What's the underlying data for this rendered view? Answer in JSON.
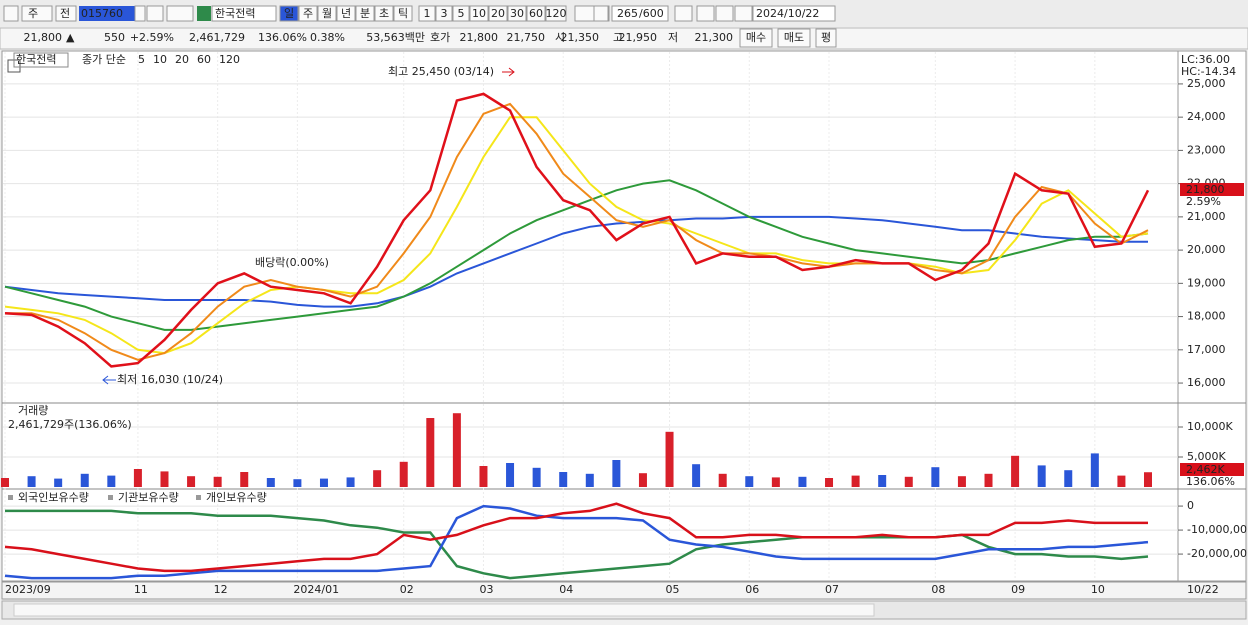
{
  "toolbar": {
    "market": "주",
    "prev": "전",
    "code": "015760",
    "name": "한국전력",
    "periods": [
      "일",
      "주",
      "월",
      "년",
      "분",
      "초",
      "틱"
    ],
    "selected_period": "일",
    "intervals": [
      "1",
      "3",
      "5",
      "10",
      "20",
      "30",
      "60",
      "120"
    ],
    "count": "265",
    "max_count": "/600",
    "date": "2024/10/22"
  },
  "quote": {
    "price": "21,800",
    "arrow": "▲",
    "change": "550",
    "change_pct": "+2.59%",
    "volume": "2,461,729",
    "volume_ratio": "136.06%",
    "turnover": "0.38%",
    "amount": "53,563백만",
    "ask_label": "호가",
    "ask": "21,800",
    "bid": "21,750",
    "open_label": "시",
    "open": "21,350",
    "high_label": "고",
    "high": "21,950",
    "low_label": "저",
    "low": "21,300",
    "buy": "매수",
    "sell": "매도",
    "avg": "평"
  },
  "chart_data": [
    {
      "type": "line",
      "title": "한국전력",
      "legend_title": "종가 단순",
      "ylim": [
        15430,
        25870
      ],
      "yticks": [
        {
          "value": 16000,
          "label": "16,000"
        },
        {
          "value": 17000,
          "label": "17,000"
        },
        {
          "value": 18000,
          "label": "18,000"
        },
        {
          "value": 19000,
          "label": "19,000"
        },
        {
          "value": 20000,
          "label": "20,000"
        },
        {
          "value": 21000,
          "label": "21,000"
        },
        {
          "value": 22000,
          "label": "22,000"
        },
        {
          "value": 23000,
          "label": "23,000"
        },
        {
          "value": 24000,
          "label": "24,000"
        },
        {
          "value": 25000,
          "label": "25,000"
        }
      ],
      "grid": true,
      "series": [
        {
          "name": "5",
          "color": "#e0101a",
          "values": [
            18100,
            18050,
            17700,
            17200,
            16500,
            16600,
            17300,
            18200,
            19000,
            19300,
            18900,
            18800,
            18700,
            18400,
            19500,
            20900,
            21800,
            24500,
            24700,
            24200,
            22500,
            21500,
            21200,
            20300,
            20800,
            21000,
            19600,
            19900,
            19800,
            19800,
            19400,
            19500,
            19700,
            19600,
            19600,
            19100,
            19400,
            20200,
            22300,
            21800,
            21700,
            20100,
            20200,
            21800
          ]
        },
        {
          "name": "10",
          "color": "#f08a1a",
          "values": [
            18100,
            18100,
            17900,
            17500,
            17000,
            16700,
            16900,
            17500,
            18300,
            18900,
            19100,
            18900,
            18800,
            18600,
            18900,
            19900,
            21000,
            22800,
            24100,
            24400,
            23500,
            22300,
            21600,
            20900,
            20700,
            20900,
            20300,
            19900,
            19900,
            19800,
            19600,
            19500,
            19600,
            19600,
            19600,
            19400,
            19300,
            19700,
            21000,
            21900,
            21700,
            20800,
            20200,
            20600
          ]
        },
        {
          "name": "20",
          "color": "#f5e61a",
          "values": [
            18300,
            18200,
            18100,
            17900,
            17500,
            17000,
            16900,
            17200,
            17800,
            18400,
            18800,
            18900,
            18800,
            18700,
            18700,
            19100,
            19900,
            21300,
            22800,
            24000,
            24000,
            23000,
            22000,
            21300,
            20900,
            20800,
            20500,
            20200,
            19900,
            19900,
            19700,
            19600,
            19600,
            19600,
            19600,
            19500,
            19300,
            19400,
            20300,
            21400,
            21800,
            21100,
            20400,
            20500
          ]
        },
        {
          "name": "60",
          "color": "#2e9a3a",
          "values": [
            18900,
            18700,
            18500,
            18300,
            18000,
            17800,
            17600,
            17600,
            17700,
            17800,
            17900,
            18000,
            18100,
            18200,
            18300,
            18600,
            19000,
            19500,
            20000,
            20500,
            20900,
            21200,
            21500,
            21800,
            22000,
            22100,
            21800,
            21400,
            21000,
            20700,
            20400,
            20200,
            20000,
            19900,
            19800,
            19700,
            19600,
            19700,
            19900,
            20100,
            20300,
            20400,
            20400,
            20500
          ]
        },
        {
          "name": "120",
          "color": "#2a56d8",
          "values": [
            18900,
            18800,
            18700,
            18650,
            18600,
            18550,
            18500,
            18500,
            18500,
            18500,
            18450,
            18350,
            18300,
            18300,
            18400,
            18600,
            18900,
            19300,
            19600,
            19900,
            20200,
            20500,
            20700,
            20800,
            20850,
            20900,
            20950,
            20950,
            21000,
            21000,
            21000,
            21000,
            20950,
            20900,
            20800,
            20700,
            20600,
            20600,
            20500,
            20400,
            20350,
            20300,
            20250,
            20250
          ]
        }
      ],
      "annotations": {
        "ex_dividend": "배당락(0.00%)",
        "high": "최고 25,450 (03/14)",
        "low": "최저 16,030 (10/24)",
        "lc": "LC:36.00",
        "hc": "HC:-14.34",
        "last_price": "21,800",
        "last_change": "2.59%"
      }
    },
    {
      "type": "bar",
      "title": "거래량",
      "subtitle": "2,461,729주(136.06%)",
      "ylim": [
        0,
        13670
      ],
      "yticks": [
        {
          "value": 5000,
          "label": "5,000K"
        },
        {
          "value": 10000,
          "label": "10,000K"
        }
      ],
      "up_color": "#d8202a",
      "down_color": "#2a56d8",
      "values": [
        1500,
        1800,
        1400,
        2200,
        1900,
        3000,
        2600,
        1800,
        1700,
        2500,
        1500,
        1300,
        1400,
        1600,
        2800,
        4200,
        11500,
        12300,
        3500,
        4000,
        3200,
        2500,
        2200,
        4500,
        2300,
        9200,
        3800,
        2200,
        1800,
        1600,
        1700,
        1500,
        1900,
        2000,
        1700,
        3300,
        1800,
        2200,
        5200,
        3600,
        2800,
        5600,
        1900,
        2462
      ],
      "last_label": "2,462K",
      "last_ratio": "136.06%"
    },
    {
      "type": "line",
      "ylim": [
        -30800000,
        6700000
      ],
      "yticks": [
        0,
        {
          "value": -10000000,
          "label": "-10,000,00"
        },
        {
          "value": -20000000,
          "label": "-20,000,00"
        }
      ],
      "categories": [
        "2023/09",
        null,
        null,
        null,
        null,
        "11",
        null,
        null,
        "12",
        null,
        null,
        "2024/01",
        null,
        null,
        null,
        "02",
        null,
        null,
        "03",
        null,
        null,
        "04",
        null,
        null,
        null,
        "05",
        null,
        null,
        "06",
        null,
        null,
        "07",
        null,
        null,
        null,
        "08",
        null,
        null,
        "09",
        null,
        null,
        "10",
        null,
        null
      ],
      "x_end_label": "10/22",
      "series": [
        {
          "name": "외국인보유수량",
          "color": "#d8101a",
          "values": [
            -17000000,
            -18000000,
            -20000000,
            -22000000,
            -24000000,
            -26000000,
            -27000000,
            -27000000,
            -26000000,
            -25000000,
            -24000000,
            -23000000,
            -22000000,
            -22000000,
            -20000000,
            -12000000,
            -14000000,
            -12000000,
            -8000000,
            -5000000,
            -5000000,
            -3000000,
            -2000000,
            1000000,
            -3000000,
            -5000000,
            -13000000,
            -13000000,
            -12000000,
            -12000000,
            -13000000,
            -13000000,
            -13000000,
            -12000000,
            -13000000,
            -13000000,
            -12000000,
            -12000000,
            -7000000,
            -7000000,
            -6000000,
            -7000000,
            -7000000,
            -7000000
          ]
        },
        {
          "name": "기관보유수량",
          "color": "#2a56d8",
          "values": [
            -29000000,
            -30000000,
            -30000000,
            -30000000,
            -30000000,
            -29000000,
            -29000000,
            -28000000,
            -27000000,
            -27000000,
            -27000000,
            -27000000,
            -27000000,
            -27000000,
            -27000000,
            -26000000,
            -25000000,
            -5000000,
            0,
            -1000000,
            -4000000,
            -5000000,
            -5000000,
            -5000000,
            -6000000,
            -14000000,
            -16000000,
            -17000000,
            -19000000,
            -21000000,
            -22000000,
            -22000000,
            -22000000,
            -22000000,
            -22000000,
            -22000000,
            -20000000,
            -18000000,
            -18000000,
            -18000000,
            -17000000,
            -17000000,
            -16000000,
            -15000000
          ]
        },
        {
          "name": "개인보유수량",
          "color": "#2e8a4a",
          "values": [
            -2000000,
            -2000000,
            -2000000,
            -2000000,
            -2000000,
            -3000000,
            -3000000,
            -3000000,
            -4000000,
            -4000000,
            -4000000,
            -5000000,
            -6000000,
            -8000000,
            -9000000,
            -11000000,
            -11000000,
            -25000000,
            -28000000,
            -30000000,
            -29000000,
            -28000000,
            -27000000,
            -26000000,
            -25000000,
            -24000000,
            -18000000,
            -16000000,
            -15000000,
            -14000000,
            -13000000,
            -13000000,
            -13000000,
            -13000000,
            -13000000,
            -13000000,
            -12000000,
            -17000000,
            -20000000,
            -20000000,
            -21000000,
            -21000000,
            -22000000,
            -21000000
          ]
        }
      ]
    }
  ]
}
